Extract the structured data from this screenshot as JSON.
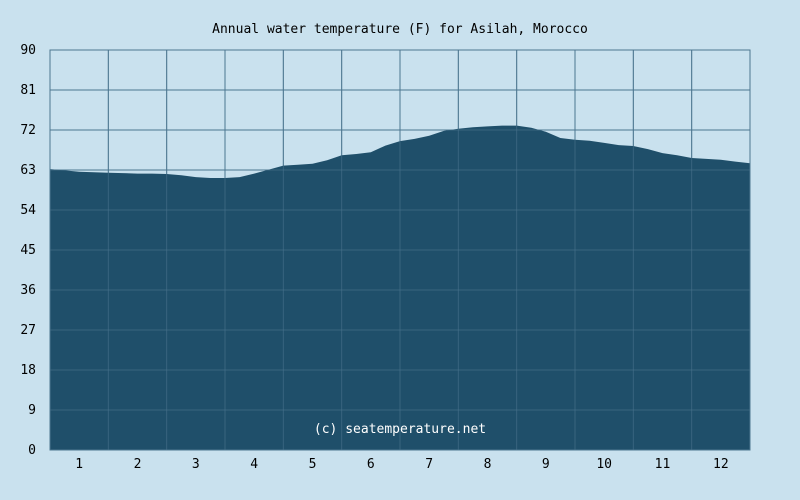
{
  "chart_data": {
    "type": "area",
    "title": "Annual water temperature (F) for Asilah, Morocco",
    "watermark": "(c) seatemperature.net",
    "xlabel": "",
    "ylabel": "",
    "x_tick_labels": [
      "1",
      "2",
      "3",
      "4",
      "5",
      "6",
      "7",
      "8",
      "9",
      "10",
      "11",
      "12"
    ],
    "y_tick_labels": [
      "0",
      "9",
      "18",
      "27",
      "36",
      "45",
      "54",
      "63",
      "72",
      "81",
      "90"
    ],
    "ylim": [
      0,
      90
    ],
    "xlim": [
      0.5,
      12.5
    ],
    "grid": true,
    "legend": "none",
    "x": [
      0.5,
      0.75,
      1.0,
      1.25,
      1.5,
      1.75,
      2.0,
      2.25,
      2.5,
      2.75,
      3.0,
      3.25,
      3.5,
      3.75,
      4.0,
      4.25,
      4.5,
      4.75,
      5.0,
      5.25,
      5.5,
      5.75,
      6.0,
      6.25,
      6.5,
      6.75,
      7.0,
      7.25,
      7.5,
      7.75,
      8.0,
      8.25,
      8.5,
      8.75,
      9.0,
      9.25,
      9.5,
      9.75,
      10.0,
      10.25,
      10.5,
      10.75,
      11.0,
      11.25,
      11.5,
      11.75,
      12.0,
      12.25,
      12.5
    ],
    "values": [
      63.2,
      62.9,
      62.6,
      62.5,
      62.4,
      62.3,
      62.2,
      62.2,
      62.1,
      61.8,
      61.4,
      61.2,
      61.2,
      61.4,
      62.2,
      63.1,
      64.0,
      64.2,
      64.4,
      65.2,
      66.3,
      66.6,
      67.0,
      68.5,
      69.5,
      70.0,
      70.7,
      71.8,
      72.3,
      72.6,
      72.8,
      73.0,
      73.0,
      72.5,
      71.6,
      70.2,
      69.8,
      69.6,
      69.1,
      68.6,
      68.4,
      67.7,
      66.8,
      66.3,
      65.7,
      65.5,
      65.3,
      64.9,
      64.5
    ]
  },
  "colors": {
    "background": "#c9e1ee",
    "area_fill": "#1f4f6a",
    "grid_line": "#4d7790",
    "axis_line": "#4d7790",
    "text": "#000000",
    "watermark_text": "#ffffff"
  }
}
